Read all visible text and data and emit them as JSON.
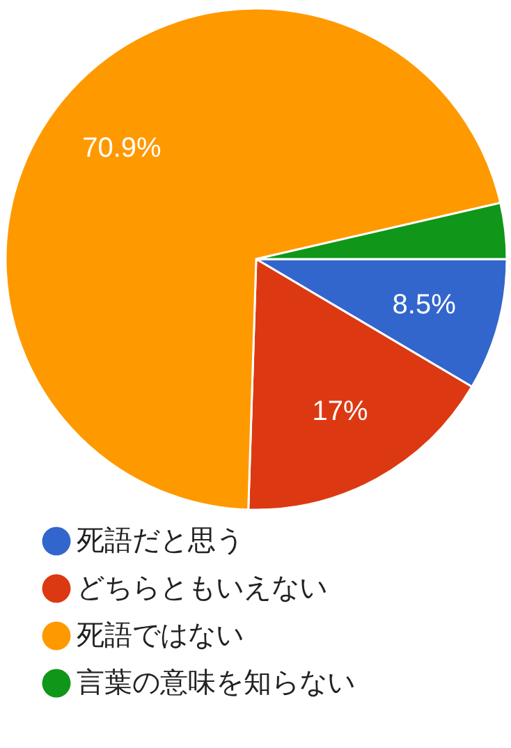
{
  "chart_data": {
    "type": "pie",
    "categories": [
      "死語だと思う",
      "どちらともいえない",
      "死語ではない",
      "言葉の意味を知らない"
    ],
    "values": [
      8.5,
      17,
      70.9,
      3.6
    ],
    "colors": [
      "#3366cc",
      "#dc3912",
      "#ff9900",
      "#109618"
    ],
    "value_labels": [
      "8.5%",
      "17%",
      "70.9%",
      null
    ],
    "legend": "bottom"
  }
}
